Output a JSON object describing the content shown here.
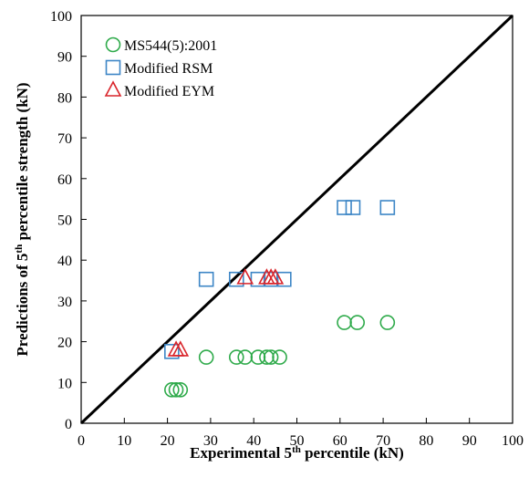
{
  "chart_data": {
    "type": "scatter",
    "title": "",
    "xlabel": "Experimental 5th percentile (kN)",
    "xlabel_parts": {
      "before": "Experimental 5",
      "sup": "th",
      "after": " percentile (kN)"
    },
    "ylabel": "Predictions of 5th percentile strength (kN)",
    "ylabel_parts": {
      "before": "Predictions of 5",
      "sup": "th",
      "after": " percentile strength  (kN)"
    },
    "xlim": [
      0,
      100
    ],
    "ylim": [
      0,
      100
    ],
    "x_ticks": [
      0,
      10,
      20,
      30,
      40,
      50,
      60,
      70,
      80,
      90,
      100
    ],
    "y_ticks": [
      0,
      10,
      20,
      30,
      40,
      50,
      60,
      70,
      80,
      90,
      100
    ],
    "grid": false,
    "legend_position": "top-left",
    "reference_line": {
      "type": "1:1",
      "from": [
        0,
        0
      ],
      "to": [
        100,
        100
      ],
      "color": "#000000"
    },
    "series": [
      {
        "name": "MS544(5):2001",
        "marker": "circle",
        "color": "#2eaa4a",
        "points": [
          [
            21,
            8.2
          ],
          [
            22,
            8.2
          ],
          [
            23,
            8.2
          ],
          [
            29,
            16.2
          ],
          [
            36,
            16.2
          ],
          [
            38,
            16.2
          ],
          [
            41,
            16.2
          ],
          [
            43,
            16.2
          ],
          [
            44,
            16.2
          ],
          [
            46,
            16.2
          ],
          [
            61,
            24.7
          ],
          [
            64,
            24.7
          ],
          [
            71,
            24.7
          ]
        ]
      },
      {
        "name": "Modified RSM",
        "marker": "square",
        "color": "#3d86c6",
        "points": [
          [
            21,
            17.6
          ],
          [
            29,
            35.3
          ],
          [
            36,
            35.3
          ],
          [
            41,
            35.3
          ],
          [
            44,
            35.3
          ],
          [
            47,
            35.3
          ],
          [
            61,
            52.9
          ],
          [
            63,
            52.9
          ],
          [
            71,
            52.9
          ]
        ]
      },
      {
        "name": "Modified EYM",
        "marker": "triangle",
        "color": "#d9252b",
        "points": [
          [
            22,
            17.9
          ],
          [
            23,
            17.9
          ],
          [
            38,
            35.6
          ],
          [
            43,
            35.6
          ],
          [
            44,
            35.6
          ],
          [
            45,
            35.6
          ]
        ]
      }
    ]
  }
}
